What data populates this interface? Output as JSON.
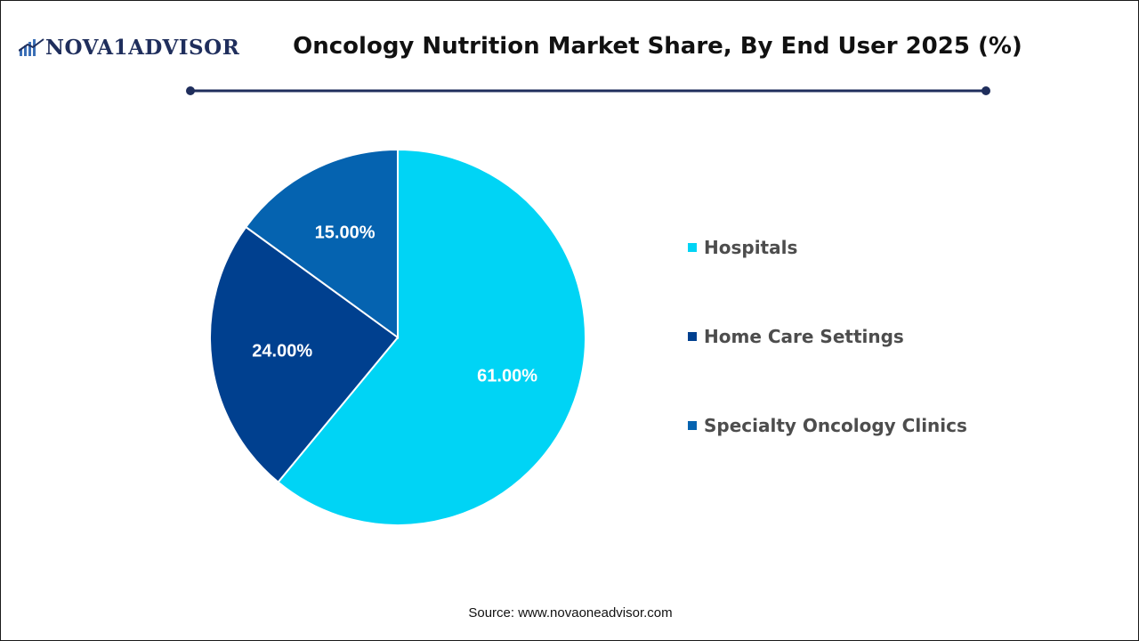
{
  "brand": {
    "logo_text": "NOVA1ADVISOR"
  },
  "chart_data": {
    "type": "pie",
    "title": "Oncology Nutrition Market Share, By End User 2025 (%)",
    "categories": [
      "Hospitals",
      "Home Care Settings",
      "Specialty Oncology Clinics"
    ],
    "values": [
      61.0,
      24.0,
      15.0
    ],
    "value_labels": [
      "61.00%",
      "24.00%",
      "15.00%"
    ],
    "colors": [
      "#00d4f5",
      "#00408f",
      "#0563b0"
    ],
    "start": "12 o'clock, clockwise",
    "legend_position": "right"
  },
  "footer": {
    "source": "Source: www.novaoneadvisor.com"
  }
}
